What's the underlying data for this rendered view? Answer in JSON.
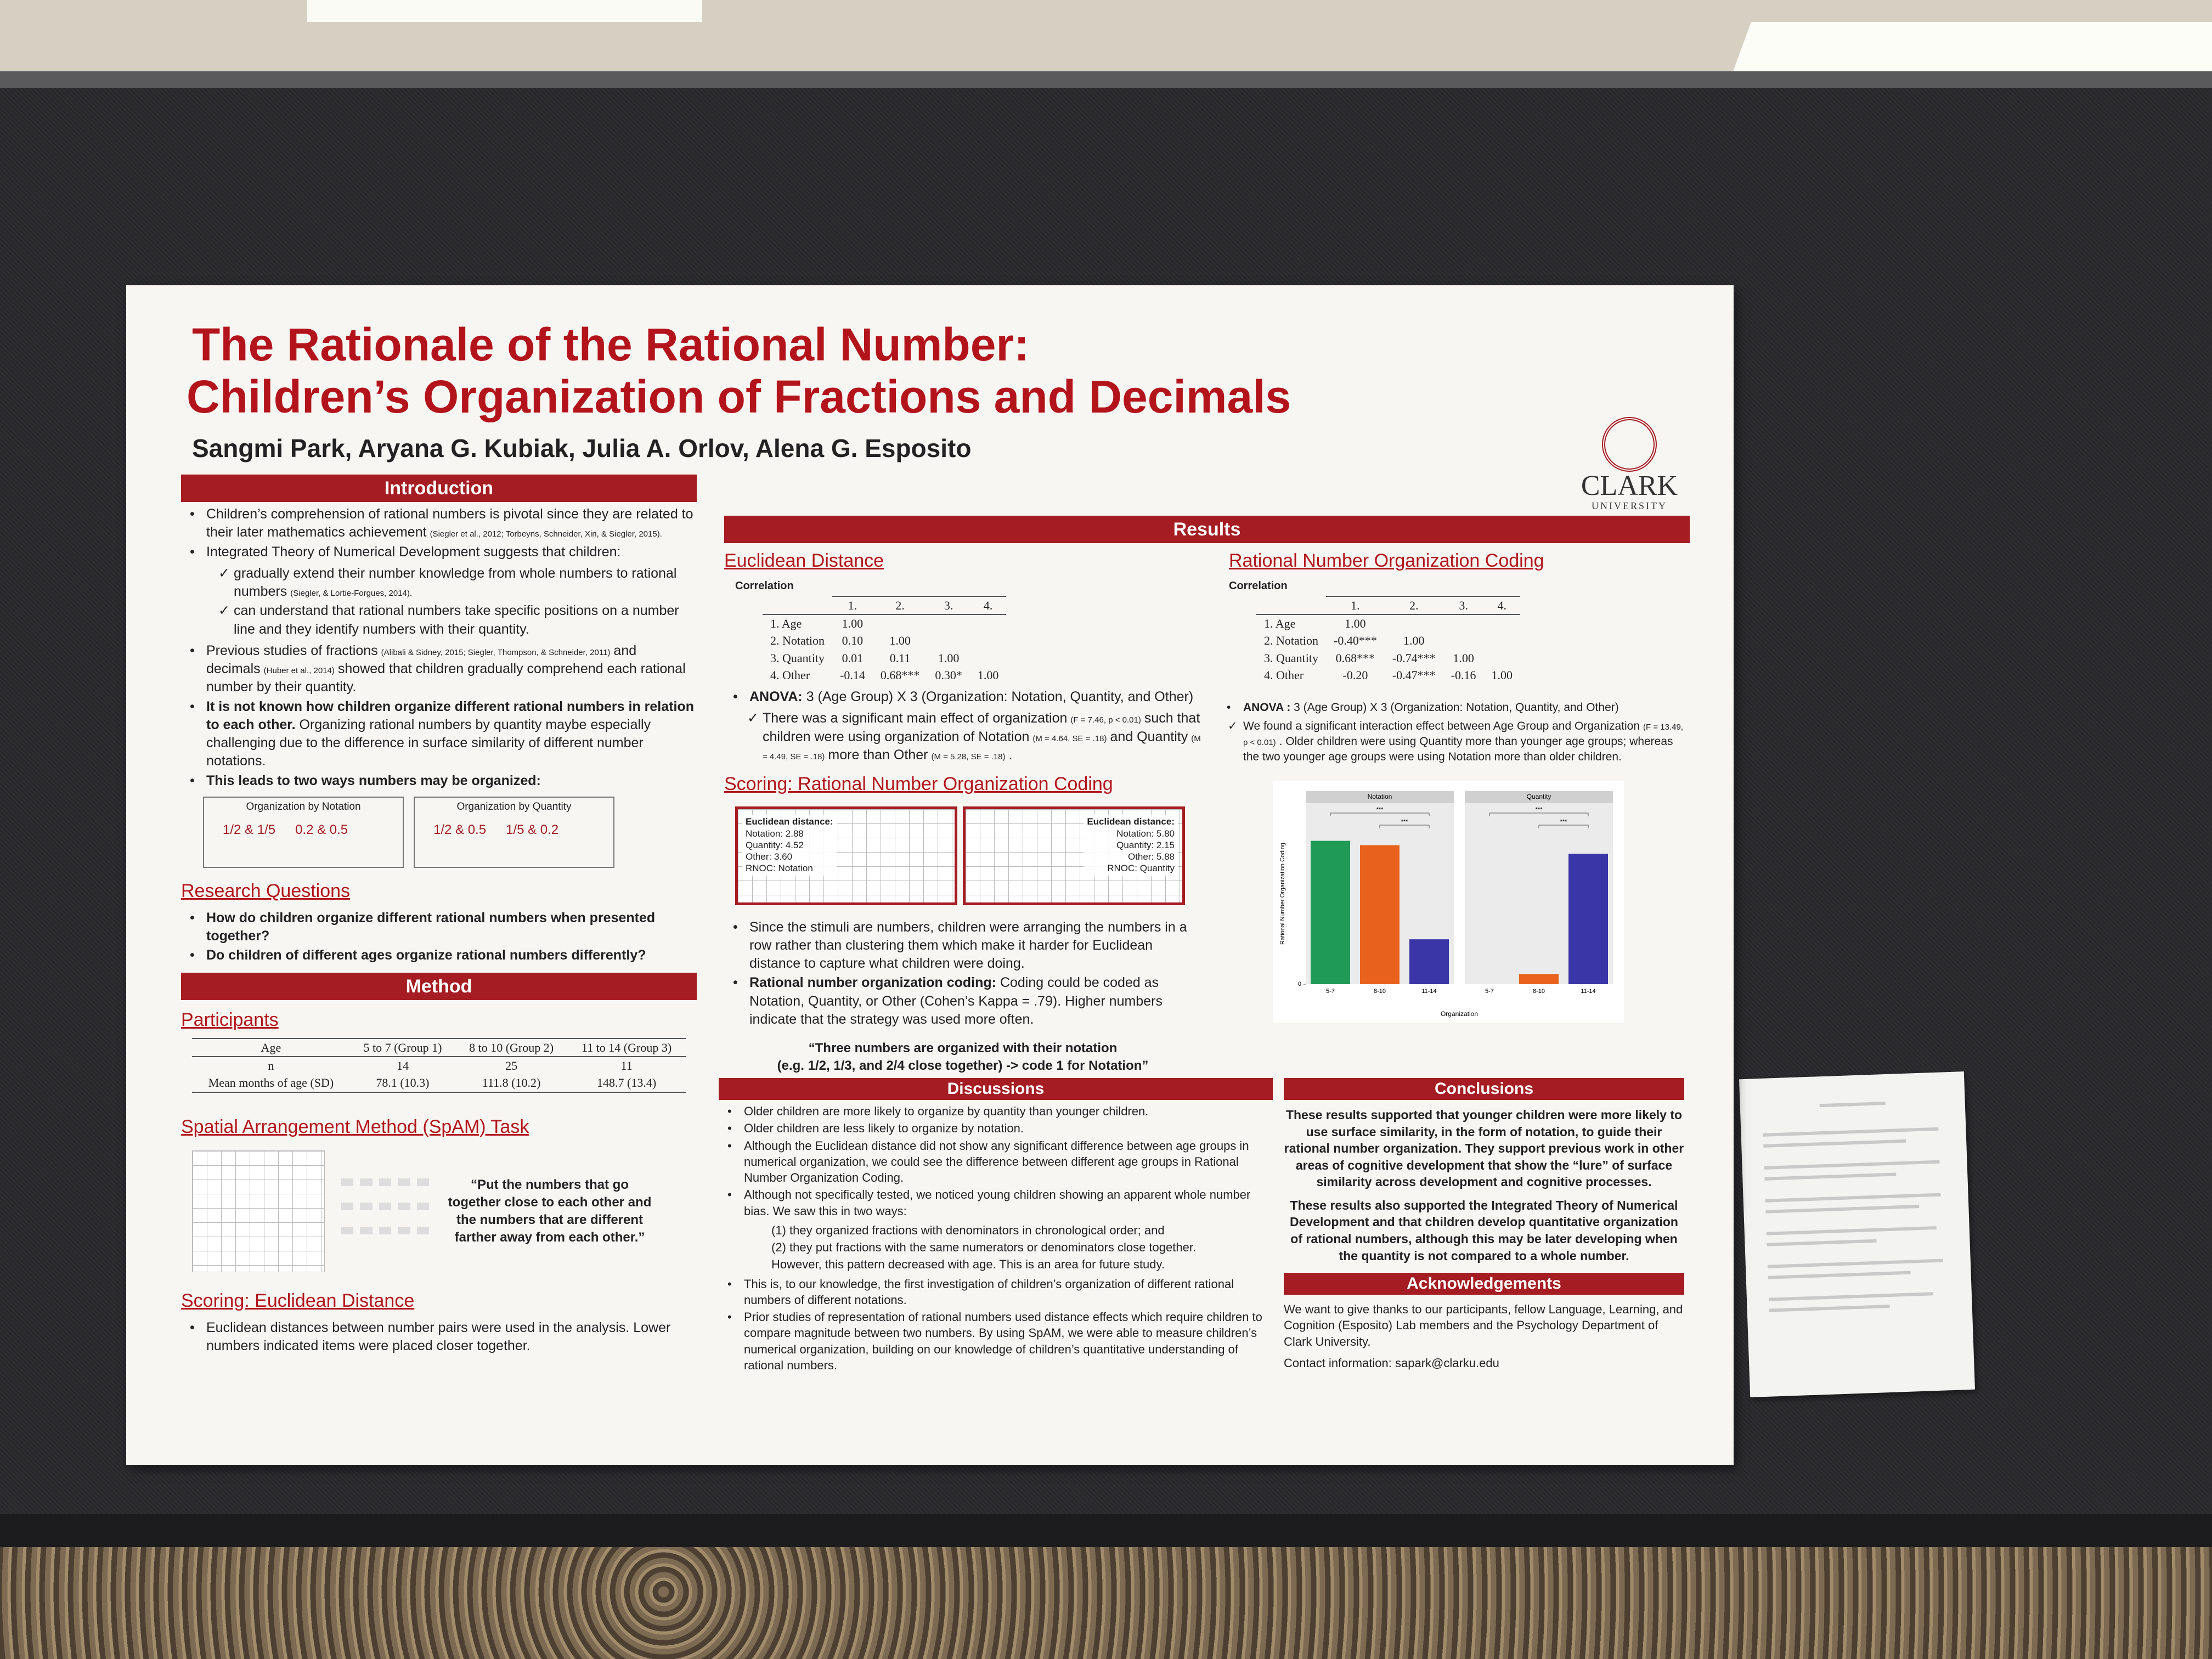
{
  "header": {
    "title_line1": "The Rationale of the Rational Number:",
    "title_line2": "Children’s Organization of Fractions and Decimals",
    "authors": "Sangmi Park, Aryana G. Kubiak, Julia A. Orlov, Alena G. Esposito",
    "logo": "CLARK",
    "logo_sub": "UNIVERSITY"
  },
  "introduction": {
    "heading": "Introduction",
    "items": [
      {
        "parts": [
          {
            "text": "Children’s comprehension of rational numbers is pivotal since they are related to their later mathematics achievement"
          },
          {
            "cite": "(Siegler et al., 2012; Torbeyns, Schneider, Xin, & Siegler, 2015)."
          }
        ]
      },
      {
        "parts": [
          {
            "text": "Integrated Theory of Numerical Development suggests that children:"
          }
        ],
        "subs": [
          {
            "parts": [
              {
                "text": "gradually extend their number knowledge from whole numbers to rational numbers"
              },
              {
                "cite": "(Siegler, & Lortie-Forgues, 2014)."
              }
            ]
          },
          {
            "parts": [
              {
                "text": "can understand that rational numbers take specific positions on a number line and they identify numbers with their quantity."
              }
            ]
          }
        ]
      },
      {
        "parts": [
          {
            "text": "Previous studies of fractions"
          },
          {
            "cite": "(Alibali & Sidney, 2015; Siegler, Thompson, & Schneider, 2011)"
          },
          {
            "text": "and decimals"
          },
          {
            "cite": "(Huber et al., 2014)"
          },
          {
            "text": "showed that children gradually comprehend each rational number by their quantity."
          }
        ]
      },
      {
        "parts": [
          {
            "bold": "It is not known how children organize different rational numbers in relation to each other."
          },
          {
            "text": " Organizing rational numbers by quantity maybe especially challenging due to the difference in surface similarity of different number notations."
          }
        ]
      },
      {
        "parts": [
          {
            "bold": "This leads to two ways numbers may be organized:"
          }
        ]
      }
    ],
    "boxes": [
      {
        "title": "Organization by Notation",
        "pairs": [
          "1/2 & 1/5",
          "0.2 & 0.5"
        ]
      },
      {
        "title": "Organization by Quantity",
        "pairs": [
          "1/2 & 0.5",
          "1/5 & 0.2"
        ]
      }
    ]
  },
  "research_questions": {
    "heading": "Research Questions",
    "items": [
      {
        "parts": [
          {
            "bold": "How do children organize different rational numbers when presented together?"
          }
        ]
      },
      {
        "parts": [
          {
            "bold": "Do children of different ages organize rational numbers differently?"
          }
        ]
      }
    ]
  },
  "method": {
    "heading": "Method",
    "participants": {
      "heading": "Participants",
      "header": [
        "Age",
        "5 to 7 (Group 1)",
        "8 to 10 (Group 2)",
        "11 to 14 (Group 3)"
      ],
      "rows": [
        [
          "n",
          "14",
          "25",
          "11"
        ],
        [
          "Mean months of age (SD)",
          "78.1 (10.3)",
          "111.8 (10.2)",
          "148.7 (13.4)"
        ]
      ]
    },
    "spam": {
      "heading": "Spatial Arrangement Method (SpAM) Task",
      "quote": "“Put the numbers that go together close to each other and the numbers that are different farther away from each other.”"
    },
    "scoring": {
      "heading": "Scoring: Euclidean Distance",
      "items": [
        {
          "parts": [
            {
              "text": "Euclidean distances between number pairs were used in the analysis. Lower numbers indicated items were placed closer together."
            }
          ]
        }
      ]
    }
  },
  "results": {
    "heading": "Results",
    "euclidean": {
      "heading": "Euclidean Distance",
      "correlation": "Correlation",
      "cols": [
        "1.",
        "2.",
        "3.",
        "4."
      ],
      "rows": [
        {
          "label": "1. Age",
          "values": [
            "1.00"
          ]
        },
        {
          "label": "2. Notation",
          "values": [
            "0.10",
            "1.00"
          ]
        },
        {
          "label": "3. Quantity",
          "values": [
            "0.01",
            "0.11",
            "1.00"
          ]
        },
        {
          "label": "4. Other",
          "values": [
            "-0.14",
            "0.68***",
            "0.30*",
            "1.00"
          ]
        }
      ],
      "anova": [
        {
          "bold": "ANOVA:"
        },
        {
          "text": " 3 (Age Group) X 3 (Organization: Notation, Quantity, and Other)"
        }
      ],
      "finding": [
        {
          "text": "There was a significant main effect of organization"
        },
        {
          "cite": "(F = 7.46, p < 0.01)"
        },
        {
          "text": "such that children were using organization of Notation"
        },
        {
          "cite": "(M = 4.64, SE = .18)"
        },
        {
          "text": "and Quantity"
        },
        {
          "cite": "(M = 4.49, SE = .18)"
        },
        {
          "text": "more than Other"
        },
        {
          "cite": "(M = 5.28, SE = .18)"
        },
        {
          "text": "."
        }
      ]
    },
    "rnoc_scoring": {
      "heading": "Scoring: Rational Number Organization Coding",
      "boxes": [
        {
          "lines": [
            "Euclidean distance:",
            "Notation: 2.88",
            "Quantity: 4.52",
            "Other: 3.60",
            "RNOC: Notation"
          ]
        },
        {
          "lines": [
            "Euclidean distance:",
            "Notation: 5.80",
            "Quantity: 2.15",
            "Other: 5.88",
            "RNOC: Quantity"
          ]
        }
      ],
      "items": [
        {
          "parts": [
            {
              "text": "Since the stimuli are numbers, children were arranging the numbers in a row rather than clustering them which make it harder for Euclidean distance to capture what children were doing."
            }
          ]
        },
        {
          "parts": [
            {
              "bold": "Rational number organization coding:"
            },
            {
              "text": " Coding could be coded as Notation, Quantity, or Other (Cohen’s Kappa = .79). Higher numbers indicate that the strategy was used more often."
            }
          ]
        }
      ],
      "quote_line1": "“Three numbers are organized with their notation",
      "quote_line2": "(e.g. 1/2, 1/3, and 2/4 close together) -> code 1 for Notation”"
    },
    "rnoc": {
      "heading": "Rational Number Organization Coding",
      "correlation": "Correlation",
      "cols": [
        "1.",
        "2.",
        "3.",
        "4."
      ],
      "rows": [
        {
          "label": "1. Age",
          "values": [
            "1.00"
          ]
        },
        {
          "label": "2. Notation",
          "values": [
            "-0.40***",
            "1.00"
          ]
        },
        {
          "label": "3. Quantity",
          "values": [
            "0.68***",
            "-0.74***",
            "1.00"
          ]
        },
        {
          "label": "4. Other",
          "values": [
            "-0.20",
            "-0.47***",
            "-0.16",
            "1.00"
          ]
        }
      ],
      "anova": [
        {
          "bold": "ANOVA :"
        },
        {
          "text": " 3 (Age Group) X 3 (Organization: Notation, Quantity, and Other)"
        }
      ],
      "finding": [
        {
          "text": "We found a significant interaction effect between Age Group and Organization"
        },
        {
          "cite": "(F = 13.49, p < 0.01)"
        },
        {
          "text": ". Older children were using Quantity more than younger age groups; whereas the two younger age groups were using Notation more than older children."
        }
      ]
    }
  },
  "chart_data": {
    "type": "bar",
    "ylabel": "Rational Number Organization Coding",
    "xlabel": "Organization",
    "categories": [
      "5-7",
      "8-10",
      "11-14"
    ],
    "colors": [
      "#1f9a57",
      "#e8621e",
      "#3a36a8"
    ],
    "ylim": [
      0,
      1.25
    ],
    "yticks": [
      0
    ],
    "panels": [
      {
        "title": "Notation",
        "values": [
          0.99,
          0.96,
          0.31
        ],
        "annotations": [
          "***",
          "***"
        ]
      },
      {
        "title": "Quantity",
        "values": [
          0,
          0.07,
          0.9
        ],
        "annotations": [
          "***",
          "***"
        ]
      }
    ]
  },
  "discussions": {
    "heading": "Discussions",
    "items": [
      {
        "parts": [
          {
            "text": "Older children are more likely to organize by quantity than younger children."
          }
        ]
      },
      {
        "parts": [
          {
            "text": "Older children are less likely to organize by notation."
          }
        ]
      },
      {
        "parts": [
          {
            "text": "Although the Euclidean distance did not show any significant difference between age groups in numerical organization, we could see the difference between different age groups in Rational Number Organization Coding."
          }
        ]
      },
      {
        "parts": [
          {
            "text": "Although not specifically tested, we noticed young children showing an apparent whole number bias. We saw this in two ways:"
          }
        ],
        "subs": [
          {
            "parts": [
              {
                "text": "(1) they organized fractions with denominators in chronological order; and"
              }
            ]
          },
          {
            "parts": [
              {
                "text": "(2) they put fractions with the same numerators or denominators close together."
              }
            ]
          },
          {
            "parts": [
              {
                "text": "However, this pattern decreased with age. This is an area for future study."
              }
            ]
          }
        ]
      },
      {
        "parts": [
          {
            "text": "This is, to our knowledge, the first investigation of children’s organization of different rational numbers of different notations."
          }
        ]
      },
      {
        "parts": [
          {
            "text": "Prior studies of representation of rational numbers used distance effects which require children to compare magnitude between two numbers. By using SpAM, we were able to measure children’s numerical organization, building on our knowledge of children’s quantitative understanding of rational numbers."
          }
        ]
      }
    ]
  },
  "conclusions": {
    "heading": "Conclusions",
    "paragraphs": [
      "These results supported that younger children were more likely to use surface similarity, in the form of notation, to guide their rational number organization.  They support previous work in other areas of cognitive development that show the “lure” of surface similarity across development and cognitive processes.",
      "These results also supported the Integrated Theory of Numerical Development and that children develop quantitative organization of rational numbers, although this may be later developing when the quantity is not compared to a whole number."
    ]
  },
  "acknowledgements": {
    "heading": "Acknowledgements",
    "text": "We want to give thanks to our participants, fellow Language, Learning, and Cognition (Esposito) Lab members and the Psychology Department of Clark University.",
    "contact": "Contact information: sapark@clarku.edu"
  }
}
